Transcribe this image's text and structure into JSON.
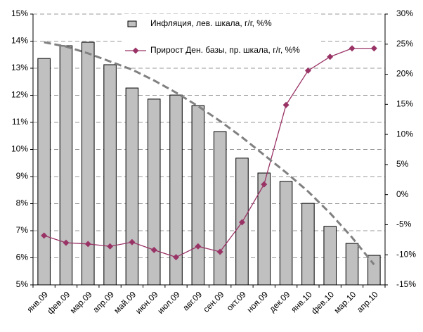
{
  "chart_data": {
    "type": "bar",
    "categories": [
      "янв.09",
      "фев.09",
      "мар.09",
      "апр.09",
      "май.09",
      "июн.09",
      "июл.09",
      "авг.09",
      "сен.09",
      "окт.09",
      "ноя.09",
      "дек.09",
      "янв.10",
      "фев.10",
      "мар.10",
      "апр.10"
    ],
    "series": [
      {
        "name": "Инфляция, лев. шкала, г/г, %%",
        "type": "bar",
        "color": "#c0c0c0",
        "values": [
          13.36,
          13.83,
          13.96,
          13.13,
          12.27,
          11.86,
          12.01,
          11.62,
          10.66,
          9.68,
          9.13,
          8.82,
          8.01,
          7.16,
          6.53,
          6.09
        ]
      },
      {
        "name": "Прирост Ден. базы, пр. шкала, г/г, %%",
        "type": "line",
        "axis": "y2",
        "color": "#993366",
        "marker": "diamond",
        "values": [
          -6.8,
          -8.0,
          -8.2,
          -8.6,
          -7.9,
          -9.2,
          -10.4,
          -8.6,
          -9.5,
          -4.6,
          1.7,
          14.9,
          20.6,
          22.9,
          24.3,
          24.3
        ]
      },
      {
        "type": "line",
        "color": "#808080",
        "dash": true,
        "values": [
          13.96,
          13.8,
          13.55,
          13.25,
          12.95,
          12.55,
          12.1,
          11.6,
          11.05,
          10.45,
          9.8,
          9.15,
          8.45,
          7.65,
          6.75,
          5.75
        ]
      }
    ],
    "ylim": [
      5,
      15
    ],
    "yticks": [
      {
        "value": 5,
        "label": "5%"
      },
      {
        "value": 6,
        "label": "6%"
      },
      {
        "value": 7,
        "label": "7%"
      },
      {
        "value": 8,
        "label": "8%"
      },
      {
        "value": 9,
        "label": "9%"
      },
      {
        "value": 10,
        "label": "10%"
      },
      {
        "value": 11,
        "label": "11%"
      },
      {
        "value": 12,
        "label": "12%"
      },
      {
        "value": 13,
        "label": "13%"
      },
      {
        "value": 14,
        "label": "14%"
      },
      {
        "value": 15,
        "label": "15%"
      }
    ],
    "y2lim": [
      -15,
      30
    ],
    "y2ticks": [
      {
        "value": -15,
        "label": "-15%"
      },
      {
        "value": -10,
        "label": "-10%"
      },
      {
        "value": -5,
        "label": "-5%"
      },
      {
        "value": 0,
        "label": "0%"
      },
      {
        "value": 5,
        "label": "5%"
      },
      {
        "value": 10,
        "label": "10%"
      },
      {
        "value": 15,
        "label": "15%"
      },
      {
        "value": 20,
        "label": "20%"
      },
      {
        "value": 25,
        "label": "25%"
      },
      {
        "value": 30,
        "label": "30%"
      }
    ],
    "grid": true,
    "legend": "top"
  }
}
